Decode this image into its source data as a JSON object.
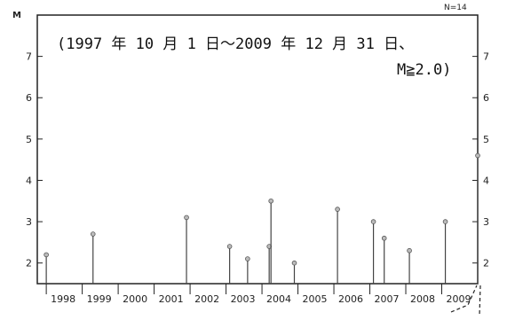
{
  "chart_data": {
    "type": "scatter",
    "style": "stem",
    "ylabel": "M",
    "count_label": "N=14",
    "annotation_lines": [
      "(1997 年 10 月 1 日～2009 年 12 月 31 日、",
      "M≧2.0)"
    ],
    "ylim": [
      1.5,
      8.0
    ],
    "y_ticks": [
      2,
      3,
      4,
      5,
      6,
      7
    ],
    "y_tick_labels": [
      "2",
      "3",
      "4",
      "5",
      "6",
      "7"
    ],
    "xlim": [
      1997.75,
      2010.0
    ],
    "year_labels": [
      "1998",
      "1999",
      "2000",
      "2001",
      "2002",
      "2003",
      "2004",
      "2005",
      "2006",
      "2007",
      "2008",
      "2009"
    ],
    "year_values": [
      1998,
      1999,
      2000,
      2001,
      2002,
      2003,
      2004,
      2005,
      2006,
      2007,
      2008,
      2009
    ],
    "grid": false,
    "points": [
      {
        "x": 1998.0,
        "y": 2.2
      },
      {
        "x": 1999.3,
        "y": 2.7
      },
      {
        "x": 2001.9,
        "y": 3.1
      },
      {
        "x": 2003.1,
        "y": 2.4
      },
      {
        "x": 2003.6,
        "y": 2.1
      },
      {
        "x": 2004.2,
        "y": 2.4
      },
      {
        "x": 2004.25,
        "y": 3.5
      },
      {
        "x": 2004.9,
        "y": 2.0
      },
      {
        "x": 2006.1,
        "y": 3.3
      },
      {
        "x": 2007.1,
        "y": 3.0
      },
      {
        "x": 2007.4,
        "y": 2.6
      },
      {
        "x": 2008.1,
        "y": 2.3
      },
      {
        "x": 2009.1,
        "y": 3.0
      },
      {
        "x": 2010.0,
        "y": 4.6
      }
    ]
  }
}
